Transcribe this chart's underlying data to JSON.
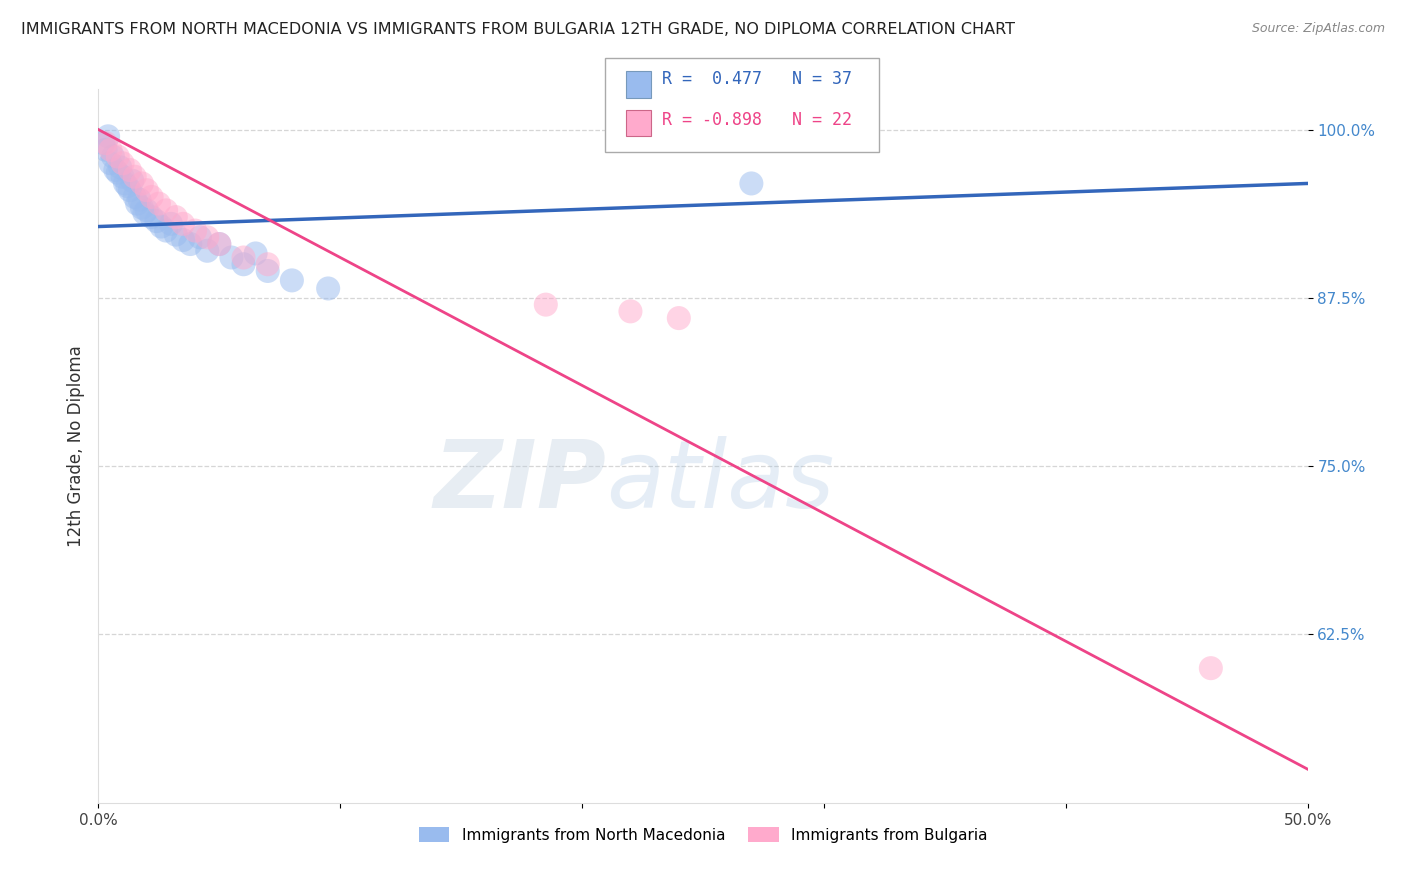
{
  "title": "IMMIGRANTS FROM NORTH MACEDONIA VS IMMIGRANTS FROM BULGARIA 12TH GRADE, NO DIPLOMA CORRELATION CHART",
  "source": "Source: ZipAtlas.com",
  "ylabel": "12th Grade, No Diploma",
  "xlim": [
    0.0,
    0.5
  ],
  "ylim": [
    0.5,
    1.03
  ],
  "xticks": [
    0.0,
    0.1,
    0.2,
    0.3,
    0.4,
    0.5
  ],
  "xticklabels": [
    "0.0%",
    "",
    "",
    "",
    "",
    "50.0%"
  ],
  "yticks": [
    0.625,
    0.75,
    0.875,
    1.0
  ],
  "yticklabels": [
    "62.5%",
    "75.0%",
    "87.5%",
    "100.0%"
  ],
  "blue_color": "#99BBEE",
  "pink_color": "#FFAACC",
  "blue_line_color": "#3366BB",
  "pink_line_color": "#EE4488",
  "R_blue": 0.477,
  "N_blue": 37,
  "R_pink": -0.898,
  "N_pink": 22,
  "blue_scatter_x": [
    0.002,
    0.003,
    0.004,
    0.005,
    0.006,
    0.007,
    0.008,
    0.009,
    0.01,
    0.011,
    0.012,
    0.013,
    0.014,
    0.015,
    0.016,
    0.017,
    0.018,
    0.019,
    0.02,
    0.022,
    0.024,
    0.026,
    0.028,
    0.03,
    0.032,
    0.035,
    0.038,
    0.042,
    0.045,
    0.05,
    0.055,
    0.06,
    0.065,
    0.07,
    0.08,
    0.095,
    0.27
  ],
  "blue_scatter_y": [
    0.99,
    0.985,
    0.995,
    0.975,
    0.98,
    0.97,
    0.968,
    0.972,
    0.965,
    0.96,
    0.958,
    0.955,
    0.962,
    0.95,
    0.945,
    0.948,
    0.942,
    0.938,
    0.94,
    0.935,
    0.932,
    0.928,
    0.925,
    0.93,
    0.922,
    0.918,
    0.915,
    0.92,
    0.91,
    0.915,
    0.905,
    0.9,
    0.908,
    0.895,
    0.888,
    0.882,
    0.96
  ],
  "pink_scatter_x": [
    0.003,
    0.005,
    0.008,
    0.01,
    0.013,
    0.015,
    0.018,
    0.02,
    0.022,
    0.025,
    0.028,
    0.032,
    0.035,
    0.04,
    0.045,
    0.05,
    0.06,
    0.07,
    0.185,
    0.22,
    0.24,
    0.46
  ],
  "pink_scatter_y": [
    0.99,
    0.985,
    0.98,
    0.975,
    0.97,
    0.965,
    0.96,
    0.955,
    0.95,
    0.945,
    0.94,
    0.935,
    0.93,
    0.925,
    0.92,
    0.915,
    0.905,
    0.9,
    0.87,
    0.865,
    0.86,
    0.6
  ],
  "blue_line_x": [
    0.0,
    0.5
  ],
  "blue_line_y": [
    0.928,
    0.96
  ],
  "pink_line_x": [
    0.0,
    0.5
  ],
  "pink_line_y": [
    1.0,
    0.525
  ],
  "watermark_zip": "ZIP",
  "watermark_atlas": "atlas",
  "background_color": "#FFFFFF",
  "grid_color": "#CCCCCC",
  "title_fontsize": 11.5,
  "tick_fontsize": 11,
  "ylabel_fontsize": 12
}
